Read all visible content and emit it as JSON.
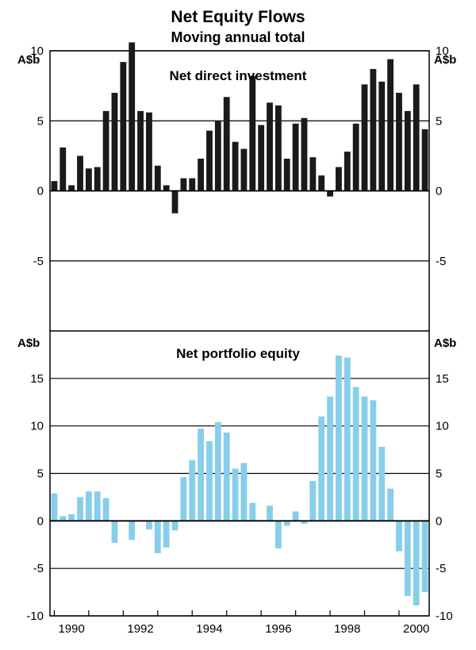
{
  "chart_data": [
    {
      "type": "bar",
      "title": "Net Equity Flows",
      "subtitle": "Moving annual total",
      "panel_title": "Net direct investment",
      "ylabel": "A$b",
      "ylim": [
        -10,
        10
      ],
      "yticks": [
        "10",
        "5",
        "0",
        "-5"
      ],
      "bar_color": "#1a1a1a",
      "x_start": 1989.875,
      "x_step": 0.25,
      "values": [
        0.7,
        3.1,
        0.4,
        2.5,
        1.6,
        1.7,
        5.7,
        7.0,
        9.2,
        10.6,
        5.7,
        5.6,
        1.8,
        0.4,
        -1.6,
        0.9,
        0.9,
        2.3,
        4.3,
        5.0,
        6.7,
        3.5,
        3.0,
        8.2,
        4.7,
        6.3,
        6.1,
        2.3,
        4.8,
        5.2,
        2.4,
        1.1,
        -0.4,
        1.7,
        2.8,
        4.8,
        7.6,
        8.7,
        7.8,
        9.4,
        7.0,
        5.7,
        7.6,
        4.4
      ]
    },
    {
      "type": "bar",
      "panel_title": "Net portfolio equity",
      "ylabel": "A$b",
      "ylim": [
        -10,
        20
      ],
      "yticks": [
        "15",
        "10",
        "5",
        "0",
        "-5",
        "-10"
      ],
      "bar_color": "#87ceeb",
      "x_start": 1989.875,
      "x_step": 0.25,
      "values": [
        2.9,
        0.5,
        0.7,
        2.5,
        3.1,
        3.1,
        2.4,
        -2.3,
        0.0,
        -2.0,
        0.0,
        -0.9,
        -3.4,
        -2.8,
        -1.0,
        4.6,
        6.4,
        9.7,
        8.4,
        10.4,
        9.3,
        5.5,
        6.1,
        1.9,
        0.1,
        1.6,
        -2.9,
        -0.5,
        1.0,
        -0.3,
        4.2,
        11.0,
        13.1,
        17.4,
        17.2,
        14.1,
        13.1,
        12.7,
        7.8,
        3.4,
        -3.2,
        -7.9,
        -8.9,
        -7.5
      ]
    }
  ],
  "x_axis": {
    "tick_labels": [
      "1990",
      "1992",
      "1994",
      "1996",
      "1998",
      "2000"
    ],
    "range": [
      1989.875,
      2000.875
    ]
  }
}
